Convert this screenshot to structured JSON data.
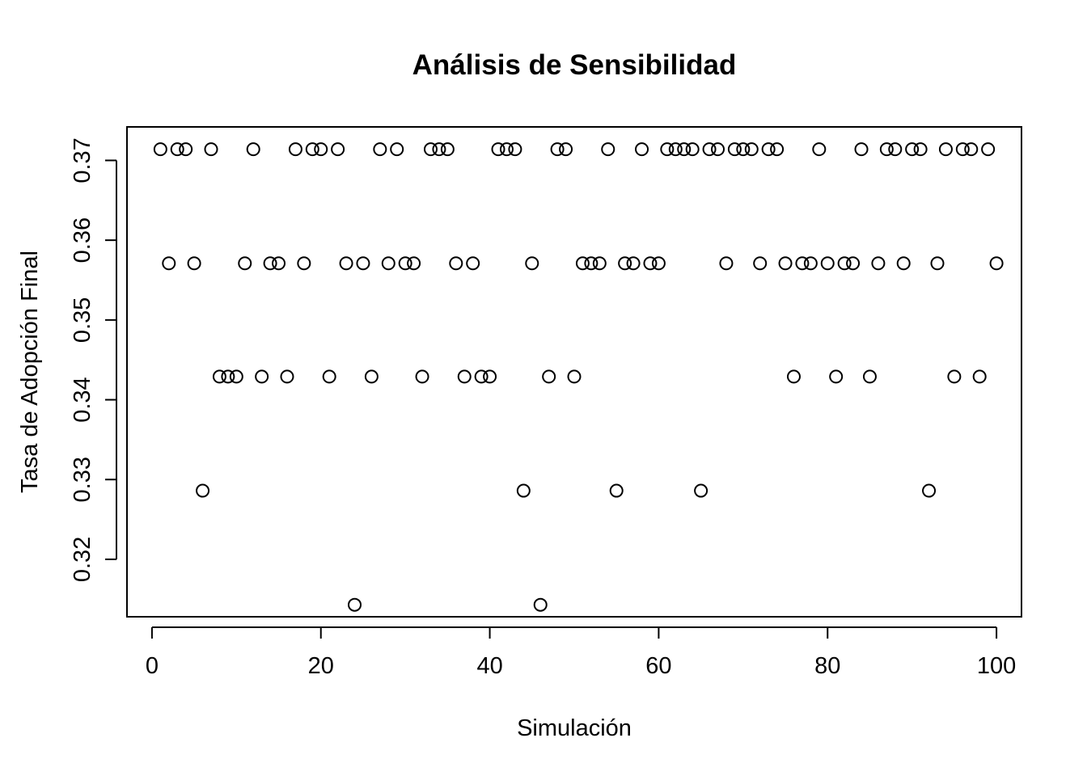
{
  "chart_data": {
    "type": "scatter",
    "title": "Análisis de Sensibilidad",
    "xlabel": "Simulación",
    "ylabel": "Tasa de Adopción Final",
    "xlim": [
      -2.96,
      102.96
    ],
    "ylim": [
      0.3128,
      0.3742
    ],
    "x_ticks": [
      0,
      20,
      40,
      60,
      80,
      100
    ],
    "x_tick_labels": [
      "0",
      "20",
      "40",
      "60",
      "80",
      "100"
    ],
    "y_ticks": [
      0.32,
      0.33,
      0.34,
      0.35,
      0.36,
      0.37
    ],
    "y_tick_labels": [
      "0.32",
      "0.33",
      "0.34",
      "0.35",
      "0.36",
      "0.37"
    ],
    "grid": false,
    "legend": "none",
    "marker": "open-circle",
    "color": "#000000",
    "x": [
      1,
      2,
      3,
      4,
      5,
      6,
      7,
      8,
      9,
      10,
      11,
      12,
      13,
      14,
      15,
      16,
      17,
      18,
      19,
      20,
      21,
      22,
      23,
      24,
      25,
      26,
      27,
      28,
      29,
      30,
      31,
      32,
      33,
      34,
      35,
      36,
      37,
      38,
      39,
      40,
      41,
      42,
      43,
      44,
      45,
      46,
      47,
      48,
      49,
      50,
      51,
      52,
      53,
      54,
      55,
      56,
      57,
      58,
      59,
      60,
      61,
      62,
      63,
      64,
      65,
      66,
      67,
      68,
      69,
      70,
      71,
      72,
      73,
      74,
      75,
      76,
      77,
      78,
      79,
      80,
      81,
      82,
      83,
      84,
      85,
      86,
      87,
      88,
      89,
      90,
      91,
      92,
      93,
      94,
      95,
      96,
      97,
      98,
      99,
      100
    ],
    "y": [
      0.3714,
      0.3571,
      0.3714,
      0.3714,
      0.3571,
      0.3286,
      0.3714,
      0.3429,
      0.3429,
      0.3429,
      0.3571,
      0.3714,
      0.3429,
      0.3571,
      0.3571,
      0.3429,
      0.3714,
      0.3571,
      0.3714,
      0.3714,
      0.3429,
      0.3714,
      0.3571,
      0.3143,
      0.3571,
      0.3429,
      0.3714,
      0.3571,
      0.3714,
      0.3571,
      0.3571,
      0.3429,
      0.3714,
      0.3714,
      0.3714,
      0.3571,
      0.3429,
      0.3571,
      0.3429,
      0.3429,
      0.3714,
      0.3714,
      0.3714,
      0.3286,
      0.3571,
      0.3143,
      0.3429,
      0.3714,
      0.3714,
      0.3429,
      0.3571,
      0.3571,
      0.3571,
      0.3714,
      0.3286,
      0.3571,
      0.3571,
      0.3714,
      0.3571,
      0.3571,
      0.3714,
      0.3714,
      0.3714,
      0.3714,
      0.3286,
      0.3714,
      0.3714,
      0.3571,
      0.3714,
      0.3714,
      0.3714,
      0.3571,
      0.3714,
      0.3714,
      0.3571,
      0.3429,
      0.3571,
      0.3571,
      0.3714,
      0.3571,
      0.3429,
      0.3571,
      0.3571,
      0.3714,
      0.3429,
      0.3571,
      0.3714,
      0.3714,
      0.3571,
      0.3714,
      0.3714,
      0.3286,
      0.3571,
      0.3714,
      0.3429,
      0.3714,
      0.3714,
      0.3429,
      0.3714,
      0.3571
    ]
  }
}
